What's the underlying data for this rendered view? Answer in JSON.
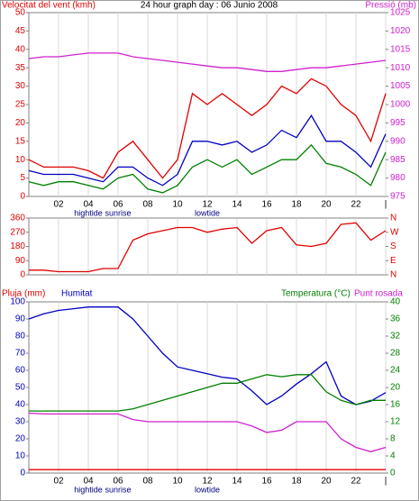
{
  "chart_data": [
    {
      "type": "line",
      "title": "24 hour graph day : 06 Junio 2008",
      "axis_labels": [
        {
          "text": "Velocitat del vent (kmh)",
          "color": "#e00000"
        },
        {
          "text": "Pressió (mb)",
          "color": "#d020d0"
        }
      ],
      "x": [
        0,
        1,
        2,
        3,
        4,
        5,
        6,
        7,
        8,
        9,
        10,
        11,
        12,
        13,
        14,
        15,
        16,
        17,
        18,
        19,
        20,
        21,
        22,
        23,
        24
      ],
      "xlim": [
        0,
        24
      ],
      "xticks": [
        {
          "value": 2,
          "label": "02"
        },
        {
          "value": 4,
          "label": "04"
        },
        {
          "value": 6,
          "label": "06"
        },
        {
          "value": 8,
          "label": "08"
        },
        10,
        12,
        14,
        16,
        18,
        20,
        22,
        {
          "value": 24,
          "label": "|"
        }
      ],
      "annotations": [
        {
          "x": 4,
          "text": "hightide"
        },
        {
          "x": 6,
          "text": "sunrise"
        },
        {
          "x": 12,
          "text": "lowtide"
        }
      ],
      "ylim": [
        0,
        50
      ],
      "yticks": [
        0,
        5,
        10,
        15,
        20,
        25,
        30,
        35,
        40,
        45,
        50
      ],
      "ytick_color": "#e00000",
      "y2lim": [
        975,
        1025
      ],
      "y2ticks": [
        975,
        980,
        985,
        990,
        995,
        1000,
        1005,
        1010,
        1015,
        1020,
        1025
      ],
      "y2tick_color": "#d020d0",
      "grid": true,
      "series": [
        {
          "color": "#e00000",
          "values": [
            10,
            8,
            8,
            8,
            7,
            5,
            12,
            15,
            10,
            5,
            10,
            28,
            25,
            28,
            25,
            22,
            25,
            30,
            28,
            32,
            30,
            25,
            22,
            15,
            28
          ]
        },
        {
          "color": "#0000c0",
          "values": [
            7,
            6,
            6,
            6,
            5,
            4,
            8,
            8,
            5,
            3,
            6,
            15,
            15,
            14,
            15,
            12,
            14,
            18,
            16,
            22,
            15,
            15,
            12,
            8,
            17
          ]
        },
        {
          "color": "#008000",
          "values": [
            4,
            3,
            4,
            4,
            3,
            2,
            5,
            6,
            2,
            1,
            3,
            8,
            10,
            8,
            10,
            6,
            8,
            10,
            10,
            14,
            9,
            8,
            6,
            3,
            12
          ]
        },
        {
          "name": "Pressió (mb)",
          "color": "#d020d0",
          "axis": "y2",
          "values": [
            1012.5,
            1013,
            1013,
            1013.5,
            1014,
            1014,
            1014,
            1013,
            1012.5,
            1012,
            1011.5,
            1011,
            1010.5,
            1010,
            1010,
            1009.5,
            1009,
            1009,
            1009.5,
            1010,
            1010,
            1010.5,
            1011,
            1011.5,
            1012
          ]
        }
      ]
    },
    {
      "type": "line",
      "x": [
        0,
        1,
        2,
        3,
        4,
        5,
        6,
        7,
        8,
        9,
        10,
        11,
        12,
        13,
        14,
        15,
        16,
        17,
        18,
        19,
        20,
        21,
        22,
        23,
        24
      ],
      "xlim": [
        0,
        24
      ],
      "ylim": [
        0,
        360
      ],
      "yticks": [
        0,
        90,
        180,
        270,
        360
      ],
      "ytick_color": "#e00000",
      "y2lim": [
        0,
        360
      ],
      "y2ticks": [
        {
          "value": 0,
          "label": "N"
        },
        {
          "value": 90,
          "label": "E"
        },
        {
          "value": 180,
          "label": "S"
        },
        {
          "value": 270,
          "label": "W"
        },
        {
          "value": 360,
          "label": "N"
        }
      ],
      "y2tick_color": "#e00000",
      "grid": true,
      "series": [
        {
          "color": "#e00000",
          "values": [
            30,
            30,
            20,
            20,
            20,
            40,
            40,
            220,
            260,
            280,
            300,
            300,
            270,
            290,
            300,
            200,
            280,
            300,
            190,
            180,
            200,
            320,
            330,
            220,
            280
          ]
        }
      ]
    },
    {
      "type": "line",
      "axis_labels": [
        {
          "text": "Pluja (mm)",
          "color": "#e00000"
        },
        {
          "text": "Humitat",
          "color": "#0000c0"
        },
        {
          "text": "Temperatura (°C)",
          "color": "#008000"
        },
        {
          "text": "Punt rosada",
          "color": "#d020d0"
        }
      ],
      "x": [
        0,
        1,
        2,
        3,
        4,
        5,
        6,
        7,
        8,
        9,
        10,
        11,
        12,
        13,
        14,
        15,
        16,
        17,
        18,
        19,
        20,
        21,
        22,
        23,
        24
      ],
      "xlim": [
        0,
        24
      ],
      "xticks": [
        {
          "value": 2,
          "label": "02"
        },
        {
          "value": 4,
          "label": "04"
        },
        {
          "value": 6,
          "label": "06"
        },
        {
          "value": 8,
          "label": "08"
        },
        10,
        12,
        14,
        16,
        18,
        20,
        22,
        {
          "value": 24,
          "label": "|"
        }
      ],
      "annotations": [
        {
          "x": 4,
          "text": "hightide"
        },
        {
          "x": 6,
          "text": "sunrise"
        },
        {
          "x": 12,
          "text": "lowtide"
        }
      ],
      "ylim": [
        0,
        100
      ],
      "yticks": [
        0,
        10,
        20,
        30,
        40,
        50,
        60,
        70,
        80,
        90,
        100
      ],
      "ytick_color": "#0000c0",
      "y2lim": [
        0,
        40
      ],
      "y2ticks": [
        0,
        4,
        8,
        12,
        16,
        20,
        24,
        28,
        32,
        36,
        40
      ],
      "y2tick_color": "#008000",
      "y3lim": [
        0,
        10
      ],
      "grid": true,
      "series": [
        {
          "name": "Pluja (mm)",
          "color": "#e00000",
          "axis": "y3",
          "values": [
            0.2,
            0.2,
            0.2,
            0.2,
            0.2,
            0.2,
            0.2,
            0.2,
            0.2,
            0.2,
            0.2,
            0.2,
            0.2,
            0.2,
            0.2,
            0.2,
            0.2,
            0.2,
            0.2,
            0.2,
            0.2,
            0.2,
            0.2,
            0.2,
            0.2
          ]
        },
        {
          "name": "Humitat",
          "color": "#0000c0",
          "values": [
            90,
            93,
            95,
            96,
            97,
            97,
            97,
            90,
            80,
            70,
            62,
            60,
            58,
            56,
            55,
            48,
            40,
            45,
            52,
            58,
            65,
            45,
            40,
            42,
            47
          ]
        },
        {
          "name": "Temperatura (°C)",
          "color": "#008000",
          "axis": "y2",
          "values": [
            14.5,
            14.5,
            14.5,
            14.5,
            14.5,
            14.5,
            14.5,
            15,
            16,
            17,
            18,
            19,
            20,
            21,
            21,
            22,
            23,
            22.5,
            23,
            23,
            19,
            17,
            16,
            17,
            17
          ]
        },
        {
          "name": "Punt rosada",
          "color": "#d020d0",
          "axis": "y2",
          "values": [
            14,
            13.8,
            13.8,
            13.8,
            13.8,
            13.8,
            13.8,
            12.5,
            12,
            12,
            12,
            12,
            12,
            12,
            12,
            11,
            9.5,
            10,
            12,
            12,
            12,
            8,
            6,
            5,
            6
          ]
        }
      ]
    }
  ]
}
